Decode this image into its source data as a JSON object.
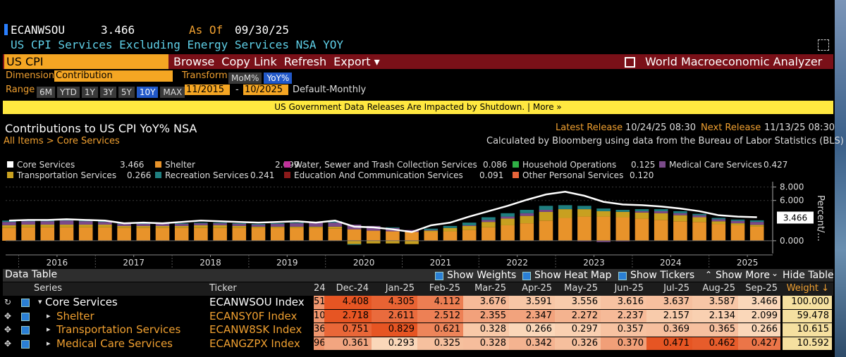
{
  "header": {
    "ticker": "ECANWSOU",
    "value": "3.466",
    "as_of_label": "As Of",
    "as_of": "09/30/25",
    "title": "US CPI Services Excluding Energy Services NSA YOY"
  },
  "toolbar": {
    "input": "US CPI",
    "buttons": [
      "Browse",
      "Copy Link",
      "Refresh",
      "Export ▾"
    ],
    "app": "World Macroeconomic Analyzer"
  },
  "controls": {
    "dimension_label": "Dimension",
    "dimension": "Contribution",
    "transform_label": "Transform",
    "transforms": [
      "MoM%",
      "YoY%"
    ],
    "range_label": "Range",
    "ranges": [
      "6M",
      "YTD",
      "1Y",
      "3Y",
      "5Y",
      "10Y",
      "MAX"
    ],
    "start": "11/2015",
    "separator": "-",
    "end": "10/2025",
    "frequency": "Default-Monthly"
  },
  "banner": "US Government Data Releases Are Impacted by Shutdown. | More »",
  "panel": {
    "title": "Contributions to US CPI YoY% NSA",
    "latest_label": "Latest Release",
    "latest": "10/24/25 08:30",
    "next_label": "Next Release",
    "next": "11/13/25 08:30",
    "breadcrumb": "All Items > Core Services",
    "source": "Calculated by Bloomberg using data from the Bureau of Labor Statistics (BLS)"
  },
  "legend": [
    {
      "name": "Core Services",
      "value_label": "3.466",
      "color": "#ffffff"
    },
    {
      "name": "Shelter",
      "value_label": "2.099",
      "color": "#e8932a"
    },
    {
      "name": "Water, Sewer and Trash Collection Services",
      "value_label": "0.086",
      "color": "#c0309a"
    },
    {
      "name": "Household Operations",
      "value_label": "0.125",
      "color": "#2fb045"
    },
    {
      "name": "Medical Care Services",
      "value_label": "0.427",
      "color": "#7a4a8a"
    },
    {
      "name": "Transportation Services",
      "value_label": "0.266",
      "color": "#c8a020"
    },
    {
      "name": "Recreation Services",
      "value_label": "0.241",
      "color": "#1f7f80"
    },
    {
      "name": "Education And Communication Services",
      "value_label": "0.091",
      "color": "#8b1a1a"
    },
    {
      "name": "Other Personal Services",
      "value_label": "0.120",
      "color": "#e8653a"
    }
  ],
  "chart_data": {
    "type": "bar",
    "stacked": true,
    "x": [
      2015.875,
      2016.125,
      2016.375,
      2016.625,
      2016.875,
      2017.125,
      2017.375,
      2017.625,
      2017.875,
      2018.125,
      2018.375,
      2018.625,
      2018.875,
      2019.125,
      2019.375,
      2019.625,
      2019.875,
      2020.125,
      2020.375,
      2020.625,
      2020.875,
      2021.125,
      2021.375,
      2021.625,
      2021.875,
      2022.125,
      2022.375,
      2022.625,
      2022.875,
      2023.125,
      2023.375,
      2023.625,
      2023.875,
      2024.125,
      2024.375,
      2024.625,
      2024.875,
      2025.125,
      2025.375,
      2025.625
    ],
    "xlim": [
      2015.83,
      2025.83
    ],
    "xticks": [
      {
        "value": 2016.5,
        "label": "2016"
      },
      {
        "value": 2017.5,
        "label": "2017"
      },
      {
        "value": 2018.5,
        "label": "2018"
      },
      {
        "value": 2019.5,
        "label": "2019"
      },
      {
        "value": 2020.5,
        "label": "2020"
      },
      {
        "value": 2021.5,
        "label": "2021"
      },
      {
        "value": 2022.5,
        "label": "2022"
      },
      {
        "value": 2023.5,
        "label": "2023"
      },
      {
        "value": 2024.5,
        "label": "2024"
      },
      {
        "value": 2025.5,
        "label": "2025"
      }
    ],
    "ylim": [
      -1.9,
      8.8
    ],
    "yticks": [
      {
        "value": 8,
        "label": "8.000"
      },
      {
        "value": 6,
        "label": "6.000"
      },
      {
        "value": 0,
        "label": "0.000"
      }
    ],
    "y_label": "Percent/...",
    "current_label": "3.466",
    "series": [
      {
        "name": "Shelter",
        "color": "#e8932a",
        "values": [
          1.9,
          2.0,
          2.0,
          2.0,
          2.0,
          2.0,
          1.9,
          1.9,
          1.9,
          1.9,
          1.9,
          1.9,
          1.9,
          1.9,
          1.9,
          1.9,
          1.9,
          1.8,
          1.7,
          1.5,
          1.4,
          1.3,
          1.3,
          1.4,
          1.6,
          2.0,
          2.3,
          2.6,
          3.0,
          3.4,
          3.6,
          3.6,
          3.5,
          3.3,
          3.1,
          2.9,
          2.8,
          2.5,
          2.3,
          2.1
        ]
      },
      {
        "name": "Transportation Services",
        "color": "#c8a020",
        "values": [
          0.4,
          0.4,
          0.4,
          0.4,
          0.4,
          0.4,
          0.3,
          0.3,
          0.3,
          0.3,
          0.4,
          0.4,
          0.3,
          0.2,
          0.2,
          0.2,
          0.2,
          0.3,
          -0.5,
          -0.4,
          -0.4,
          -0.5,
          0.2,
          0.5,
          0.6,
          0.8,
          1.0,
          1.1,
          1.3,
          1.3,
          1.1,
          0.8,
          0.8,
          0.9,
          1.0,
          0.9,
          0.7,
          0.4,
          0.3,
          0.27
        ]
      },
      {
        "name": "Medical Care Services",
        "color": "#7a4a8a",
        "values": [
          0.5,
          0.5,
          0.5,
          0.6,
          0.5,
          0.4,
          0.3,
          0.3,
          0.3,
          0.3,
          0.3,
          0.3,
          0.3,
          0.3,
          0.4,
          0.5,
          0.6,
          0.6,
          0.7,
          0.7,
          0.5,
          0.3,
          0.1,
          0.0,
          0.1,
          0.3,
          0.3,
          0.4,
          0.3,
          0.0,
          -0.1,
          -0.2,
          -0.1,
          0.2,
          0.3,
          0.3,
          0.3,
          0.3,
          0.35,
          0.43
        ]
      },
      {
        "name": "Recreation Services",
        "color": "#1f7f80",
        "values": [
          0.2,
          0.2,
          0.2,
          0.2,
          0.2,
          0.2,
          0.1,
          0.1,
          0.1,
          0.1,
          0.1,
          0.1,
          0.1,
          0.1,
          0.1,
          0.1,
          0.1,
          0.2,
          -0.1,
          0.0,
          0.1,
          0.0,
          0.2,
          0.3,
          0.4,
          0.4,
          0.5,
          0.5,
          0.6,
          0.6,
          0.5,
          0.4,
          0.3,
          0.3,
          0.3,
          0.3,
          0.2,
          0.2,
          0.2,
          0.24
        ]
      }
    ],
    "line": {
      "name": "Core Services",
      "color": "#ffffff",
      "values": [
        3.0,
        3.1,
        3.1,
        3.2,
        3.1,
        3.0,
        2.6,
        2.7,
        2.6,
        2.8,
        3.0,
        2.9,
        2.8,
        2.7,
        2.8,
        2.9,
        2.7,
        3.0,
        2.1,
        2.0,
        1.7,
        1.3,
        2.3,
        2.7,
        3.6,
        4.4,
        5.2,
        6.1,
        6.9,
        7.3,
        6.7,
        5.8,
        5.4,
        5.3,
        5.1,
        4.8,
        4.4,
        3.8,
        3.6,
        3.5
      ]
    }
  },
  "table": {
    "title": "Data Table",
    "options": [
      "Show Weights",
      "Show Heat Map",
      "Show Tickers"
    ],
    "more": "Show More",
    "hide": "Hide Table",
    "columns": [
      "Series",
      "Ticker",
      "24",
      "Dec-24",
      "Jan-25",
      "Feb-25",
      "Mar-25",
      "Apr-25",
      "May-25",
      "Jun-25",
      "Jul-25",
      "Aug-25",
      "Sep-25",
      "Weight ↓"
    ],
    "rows": [
      [
        "Core Services",
        "ECANWSOU Index",
        "51",
        "4.408",
        "4.305",
        "4.112",
        "3.676",
        "3.591",
        "3.556",
        "3.616",
        "3.637",
        "3.587",
        "3.466",
        "100.000"
      ],
      [
        "Shelter",
        "ECANSY0F Index",
        "10",
        "2.718",
        "2.611",
        "2.512",
        "2.355",
        "2.347",
        "2.272",
        "2.237",
        "2.157",
        "2.134",
        "2.099",
        "59.478"
      ],
      [
        "Transportation Services",
        "ECANW8SK Index",
        "36",
        "0.751",
        "0.829",
        "0.621",
        "0.328",
        "0.266",
        "0.297",
        "0.357",
        "0.369",
        "0.365",
        "0.266",
        "10.615"
      ],
      [
        "Medical Care Services",
        "ECANGZPX Index",
        "96",
        "0.361",
        "0.293",
        "0.325",
        "0.328",
        "0.342",
        "0.326",
        "0.370",
        "0.471",
        "0.462",
        "0.427",
        "10.592"
      ]
    ]
  }
}
